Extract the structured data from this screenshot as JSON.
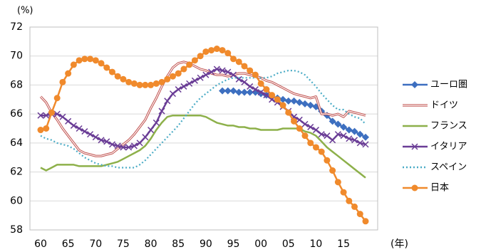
{
  "chart_data": {
    "type": "line",
    "y_label": "(%)",
    "x_label": "(年)",
    "categories": [
      "60",
      null,
      null,
      null,
      null,
      "65",
      null,
      null,
      null,
      null,
      "70",
      null,
      null,
      null,
      null,
      "75",
      null,
      null,
      null,
      null,
      "80",
      null,
      null,
      null,
      null,
      "85",
      null,
      null,
      null,
      null,
      "90",
      null,
      null,
      null,
      null,
      "95",
      null,
      null,
      null,
      null,
      "00",
      null,
      null,
      null,
      null,
      "05",
      null,
      null,
      null,
      null,
      "10",
      null,
      null,
      null,
      null,
      "15",
      null,
      null,
      null,
      null
    ],
    "ylim": [
      58,
      72
    ],
    "yticks": [
      58,
      60,
      62,
      64,
      66,
      68,
      70,
      72
    ],
    "grid": true,
    "legend": "right",
    "series": [
      {
        "name": "ユーロ圏",
        "color": "#3d6fc0",
        "marker": "diamond",
        "style": "solid",
        "values": [
          null,
          null,
          null,
          null,
          null,
          null,
          null,
          null,
          null,
          null,
          null,
          null,
          null,
          null,
          null,
          null,
          null,
          null,
          null,
          null,
          null,
          null,
          null,
          null,
          null,
          null,
          null,
          null,
          null,
          null,
          null,
          null,
          null,
          67.6,
          67.6,
          67.6,
          67.5,
          67.5,
          67.5,
          67.5,
          67.4,
          67.3,
          67.2,
          67.1,
          67.0,
          66.9,
          66.9,
          66.8,
          66.7,
          66.6,
          66.5,
          66.2,
          65.9,
          65.5,
          65.3,
          65.1,
          64.9,
          64.8,
          64.6,
          64.4
        ]
      },
      {
        "name": "ドイツ",
        "color": "#c0504d",
        "marker": "none",
        "style": "outline",
        "values": [
          67.2,
          66.8,
          66.1,
          65.6,
          65.0,
          64.5,
          64.0,
          63.5,
          63.3,
          63.2,
          63.1,
          63.1,
          63.2,
          63.3,
          63.6,
          63.9,
          64.2,
          64.6,
          65.1,
          65.6,
          66.4,
          67.1,
          67.9,
          68.6,
          69.2,
          69.5,
          69.6,
          69.5,
          69.3,
          69.1,
          69.0,
          68.8,
          68.7,
          68.7,
          68.6,
          68.7,
          68.8,
          68.8,
          68.7,
          68.6,
          68.5,
          68.3,
          68.2,
          68.0,
          67.8,
          67.6,
          67.4,
          67.3,
          67.2,
          67.1,
          67.2,
          66.0,
          66.0,
          65.9,
          66.0,
          65.8,
          66.2,
          66.1,
          66.0,
          65.9
        ]
      },
      {
        "name": "フランス",
        "color": "#8db04a",
        "marker": "none",
        "style": "solid",
        "values": [
          62.3,
          62.1,
          62.3,
          62.5,
          62.5,
          62.5,
          62.5,
          62.4,
          62.4,
          62.4,
          62.4,
          62.4,
          62.5,
          62.6,
          62.7,
          62.9,
          63.1,
          63.3,
          63.5,
          63.8,
          64.3,
          64.9,
          65.4,
          65.8,
          65.9,
          65.9,
          65.9,
          65.9,
          65.9,
          65.9,
          65.8,
          65.6,
          65.4,
          65.3,
          65.2,
          65.2,
          65.1,
          65.1,
          65.0,
          65.0,
          64.9,
          64.9,
          64.9,
          64.9,
          65.0,
          65.0,
          65.0,
          65.0,
          64.8,
          64.7,
          64.5,
          64.1,
          63.7,
          63.4,
          63.1,
          62.8,
          62.5,
          62.2,
          61.9,
          61.6
        ]
      },
      {
        "name": "イタリア",
        "color": "#6a3d96",
        "marker": "x",
        "style": "solid",
        "values": [
          65.9,
          65.9,
          66.0,
          66.0,
          65.8,
          65.5,
          65.2,
          65.0,
          64.8,
          64.6,
          64.4,
          64.2,
          64.1,
          63.9,
          63.8,
          63.7,
          63.7,
          63.8,
          64.0,
          64.4,
          64.9,
          65.4,
          66.2,
          66.9,
          67.4,
          67.7,
          67.9,
          68.1,
          68.3,
          68.5,
          68.7,
          68.9,
          69.1,
          69.0,
          68.9,
          68.7,
          68.4,
          68.2,
          67.9,
          67.7,
          67.5,
          67.3,
          67.0,
          66.8,
          66.5,
          66.2,
          65.8,
          65.6,
          65.3,
          65.1,
          64.9,
          64.6,
          64.5,
          64.2,
          64.6,
          64.5,
          64.3,
          64.2,
          64.0,
          63.9
        ]
      },
      {
        "name": "スペイン",
        "color": "#4bacc6",
        "marker": "none",
        "style": "dotted",
        "values": [
          64.5,
          64.3,
          64.2,
          64.0,
          63.9,
          63.8,
          63.6,
          63.3,
          63.0,
          62.8,
          62.6,
          62.5,
          62.4,
          62.4,
          62.3,
          62.3,
          62.3,
          62.3,
          62.5,
          62.8,
          63.2,
          63.6,
          64.0,
          64.4,
          64.8,
          65.2,
          65.7,
          66.2,
          66.7,
          67.1,
          67.4,
          67.7,
          68.0,
          68.2,
          68.4,
          68.5,
          68.5,
          68.5,
          68.5,
          68.5,
          68.5,
          68.5,
          68.6,
          68.8,
          68.9,
          69.0,
          69.0,
          68.9,
          68.7,
          68.3,
          67.9,
          67.4,
          67.0,
          66.6,
          66.3,
          66.3,
          66.0,
          65.8,
          65.7,
          65.3
        ]
      },
      {
        "name": "日本",
        "color": "#f08a2c",
        "marker": "circle",
        "style": "solid",
        "values": [
          64.9,
          65.0,
          66.1,
          67.1,
          68.2,
          68.8,
          69.4,
          69.7,
          69.8,
          69.8,
          69.7,
          69.5,
          69.2,
          68.9,
          68.6,
          68.4,
          68.2,
          68.1,
          68.0,
          68.0,
          68.0,
          68.1,
          68.2,
          68.4,
          68.6,
          68.8,
          69.1,
          69.4,
          69.7,
          70.0,
          70.3,
          70.4,
          70.5,
          70.4,
          70.2,
          69.8,
          69.6,
          69.3,
          69.0,
          68.7,
          68.1,
          67.7,
          67.3,
          67.0,
          66.6,
          66.1,
          65.5,
          65.0,
          64.5,
          64.0,
          63.7,
          63.4,
          62.8,
          62.1,
          61.3,
          60.6,
          60.0,
          59.6,
          59.1,
          58.6
        ]
      }
    ]
  }
}
